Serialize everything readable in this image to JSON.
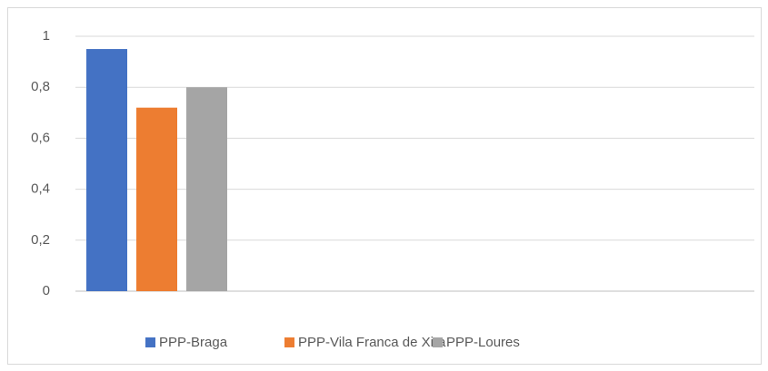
{
  "chart_data": {
    "type": "bar",
    "categories": [
      null
    ],
    "series": [
      {
        "name": "PPP-Braga",
        "color": "#4472c4",
        "values": [
          0.95
        ]
      },
      {
        "name": "PPP-Vila Franca de Xira",
        "color": "#ed7d31",
        "values": [
          0.72
        ]
      },
      {
        "name": "PPP-Loures",
        "color": "#a5a5a5",
        "values": [
          0.8
        ]
      }
    ],
    "ylim": [
      0,
      1
    ],
    "yticks": [
      0,
      {
        "value": 0.2,
        "label": "0,2"
      },
      {
        "value": 0.4,
        "label": "0,4"
      },
      {
        "value": 0.6,
        "label": "0,6"
      },
      {
        "value": 0.8,
        "label": "0,8"
      },
      1
    ],
    "grid": true,
    "legend": "bottom"
  }
}
